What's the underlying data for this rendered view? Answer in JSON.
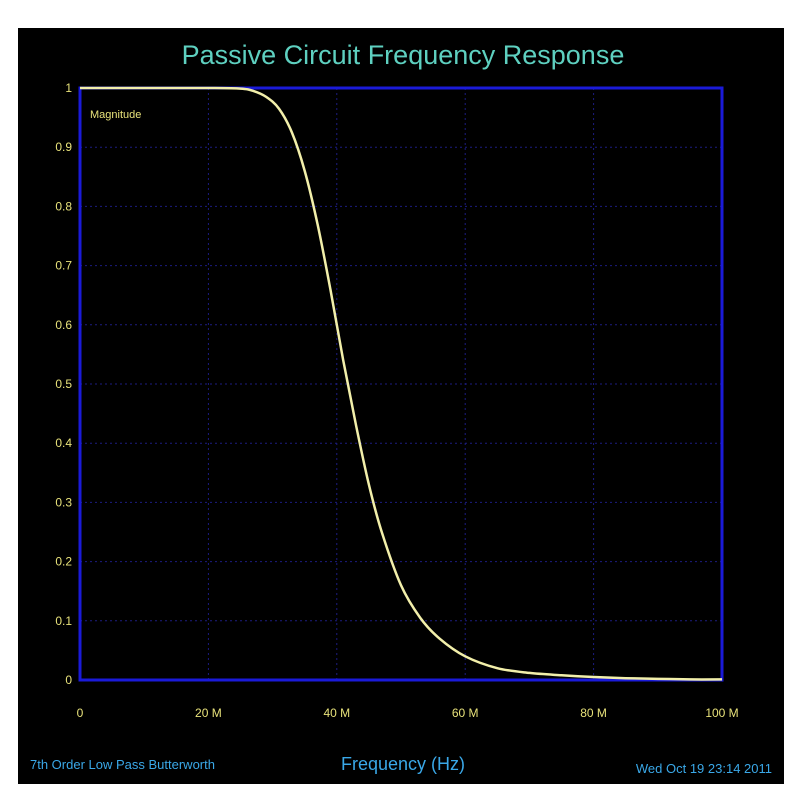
{
  "chart_data": {
    "type": "line",
    "title": "Passive Circuit Frequency Response",
    "xlabel": "Frequency (Hz)",
    "ylabel": "",
    "plot_label": "Magnitude",
    "footer_left": "7th Order Low Pass Butterworth",
    "footer_right": "Wed Oct 19 23:14 2011",
    "xlim": [
      0,
      100
    ],
    "ylim": [
      0,
      1
    ],
    "x_ticks": [
      0,
      20,
      40,
      60,
      80,
      100
    ],
    "x_tick_labels": [
      "0",
      "20 M",
      "40 M",
      "60 M",
      "80 M",
      "100 M"
    ],
    "y_ticks": [
      0,
      0.1,
      0.2,
      0.3,
      0.4,
      0.5,
      0.6,
      0.7,
      0.8,
      0.9,
      1
    ],
    "y_tick_labels": [
      "0",
      "0.1",
      "0.2",
      "0.3",
      "0.4",
      "0.5",
      "0.6",
      "0.7",
      "0.8",
      "0.9",
      "1"
    ],
    "grid": true,
    "colors": {
      "background": "#000000",
      "plot_border": "#1a1ad8",
      "grid": "#1c1c80",
      "curve": "#f2efaa"
    },
    "series": [
      {
        "x": [
          0,
          5,
          10,
          15,
          20,
          25,
          27,
          29,
          31,
          33,
          35,
          37,
          39,
          41,
          43,
          45,
          47,
          50,
          53,
          56,
          60,
          65,
          70,
          75,
          80,
          85,
          90,
          95,
          100
        ],
        "values": [
          1.0,
          1.0,
          1.0,
          1.0,
          1.0,
          0.999,
          0.995,
          0.985,
          0.965,
          0.925,
          0.86,
          0.77,
          0.66,
          0.54,
          0.43,
          0.33,
          0.25,
          0.16,
          0.105,
          0.07,
          0.04,
          0.02,
          0.012,
          0.008,
          0.005,
          0.003,
          0.002,
          0.001,
          0.001
        ]
      }
    ]
  }
}
